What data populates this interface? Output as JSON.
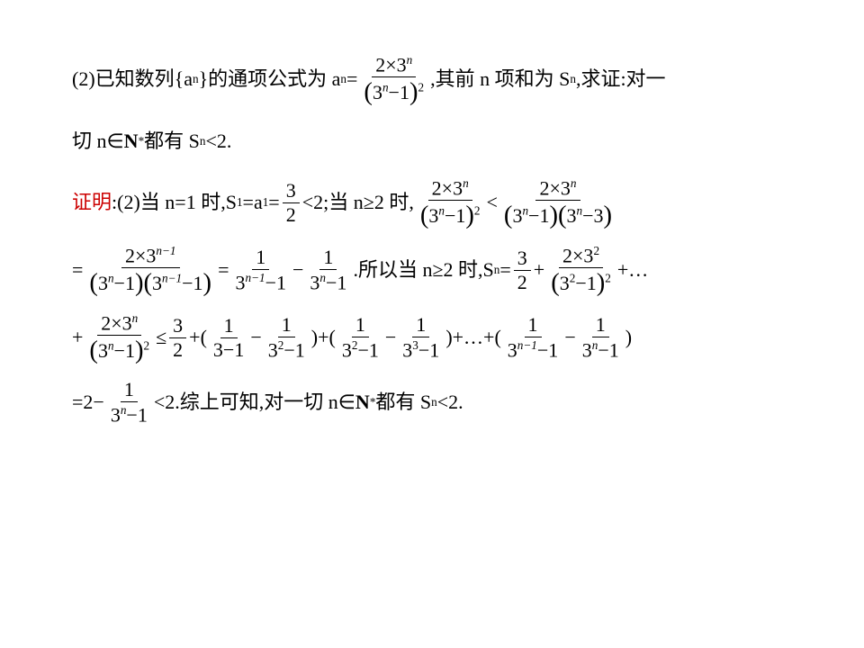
{
  "colors": {
    "text": "#000000",
    "accent": "#cc0000",
    "background": "#ffffff"
  },
  "typography": {
    "body_family": "SimSun, Songti SC, serif",
    "math_family": "Times New Roman, serif",
    "body_size_pt": 16,
    "line_height": 2.0
  },
  "p1": {
    "t1": "(2)已知数列{a",
    "t2": "}的通项公式为 a",
    "t3": "=",
    "t4": ",其前 n 项和为 S",
    "t5": ",求证:对一",
    "sub_n": "n",
    "frac1_num_a": "2×3",
    "frac1_den_a": "3",
    "frac1_den_b": "−1",
    "exp_n": "n",
    "exp_2": "2"
  },
  "p2": {
    "t1": "切 n∈",
    "t2": "N",
    "t3": "都有 S",
    "t4": "<2.",
    "star": "*",
    "sub_n": "n"
  },
  "p3": {
    "label": "证明",
    "t0": ":(2)当 n=1 时,S",
    "t1": "=a",
    "t2": "=",
    "t3": "<2;当 n≥2 时,",
    "t4": "<",
    "sub1": "1",
    "sub_n": "n",
    "f_3_2_num": "3",
    "f_3_2_den": "2",
    "fA_num": "2×3",
    "fA_den_a": "3",
    "fA_den_b": "−1",
    "fB_den_a": "3",
    "fB_den_b": "−1",
    "fB_den_c": "3",
    "fB_den_d": "−3",
    "exp_n": "n",
    "exp_2": "2"
  },
  "p4": {
    "eq": "=",
    "minus": "−",
    "t_mid": ".所以当 n≥2 时,S",
    "t_eq": "=",
    "plus": "+",
    "t_dots": "+…",
    "sub_n": "n",
    "f1_num": "2×3",
    "f1_num_exp": "n−1",
    "f1_den_a": "3",
    "f1_den_b": "−1",
    "f1_den_c": "3",
    "f1_den_c_exp": "n−1",
    "f1_den_d": "−1",
    "f2_num": "1",
    "f2_den_a": "3",
    "f2_den_a_exp": "n−1",
    "f2_den_b": "−1",
    "f3_num": "1",
    "f3_den_a": "3",
    "f3_den_b": "−1",
    "f32_num": "3",
    "f32_den": "2",
    "f4_num": "2×3",
    "f4_num_exp": "2",
    "f4_den_a": "3",
    "f4_den_a_exp": "2",
    "f4_den_b": "−1",
    "f4_den_exp": "2",
    "exp_n": "n"
  },
  "p5": {
    "plus": "+",
    "le": "≤",
    "minus": "−",
    "lp": "(",
    "rp": ")",
    "dots": "+…+",
    "fA_num": "2×3",
    "fA_num_exp": "n",
    "fA_den_a": "3",
    "fA_den_b": "−1",
    "fA_den_exp": "2",
    "f32_num": "3",
    "f32_den": "2",
    "f1_num": "1",
    "f1_den": "3−1",
    "f2_num": "1",
    "f2_den_a": "3",
    "f2_den_exp": "2",
    "f2_den_b": "−1",
    "f3_num": "1",
    "f3_den_a": "3",
    "f3_den_exp": "2",
    "f3_den_b": "−1",
    "f4_num": "1",
    "f4_den_a": "3",
    "f4_den_exp": "3",
    "f4_den_b": "−1",
    "f5_num": "1",
    "f5_den_a": "3",
    "f5_den_exp": "n−1",
    "f5_den_b": "−1",
    "f6_num": "1",
    "f6_den_a": "3",
    "f6_den_exp": "n",
    "f6_den_b": "−1"
  },
  "p6": {
    "t1": "=2−",
    "t2": "<2.综上可知,对一切 n∈",
    "t3": "N",
    "t4": "都有 S",
    "t5": "<2.",
    "star": "*",
    "sub_n": "n",
    "f_num": "1",
    "f_den_a": "3",
    "f_den_exp": "n",
    "f_den_b": "−1"
  }
}
